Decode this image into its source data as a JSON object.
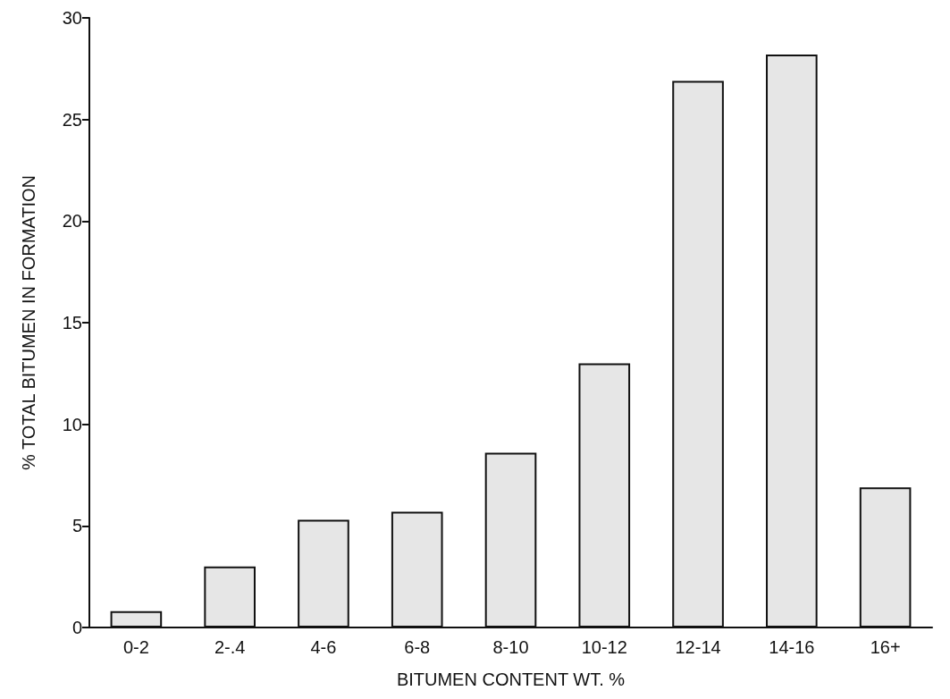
{
  "chart_data": {
    "type": "bar",
    "xlabel": "BITUMEN CONTENT WT. %",
    "ylabel": "% TOTAL BITUMEN IN FORMATION",
    "categories": [
      "0-2",
      "2-.4",
      "4-6",
      "6-8",
      "8-10",
      "10-12",
      "12-14",
      "14-16",
      "16+"
    ],
    "values": [
      0.8,
      3.0,
      5.3,
      5.7,
      8.6,
      13.0,
      26.9,
      28.2,
      6.9
    ],
    "color": "#e6e6e6",
    "ylim": [
      0,
      30
    ],
    "yticks": [
      0,
      5,
      10,
      15,
      20,
      25,
      30
    ],
    "grid": false
  }
}
